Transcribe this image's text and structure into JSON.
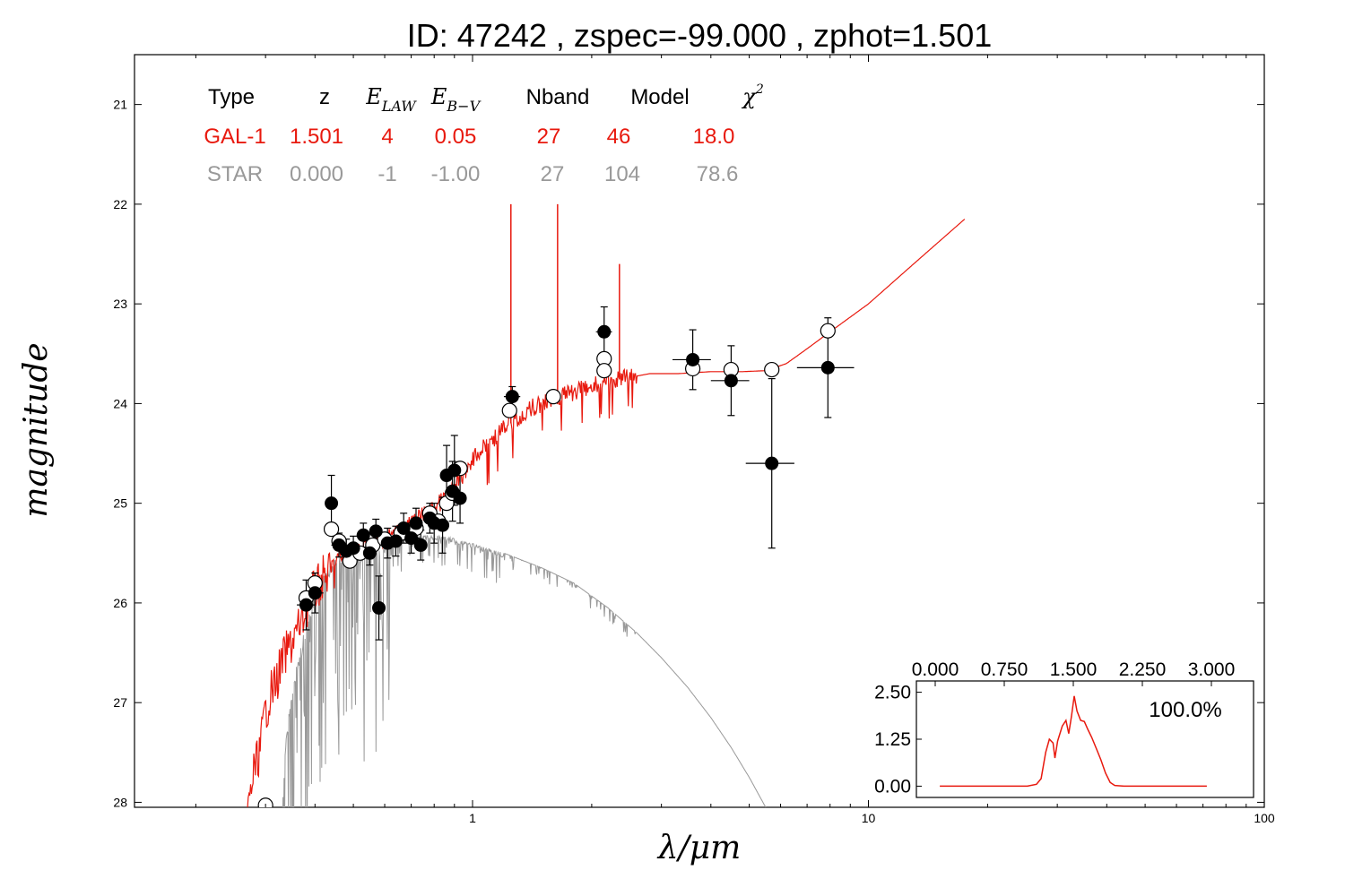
{
  "colors": {
    "galaxy": "#e8190e",
    "star": "#999999",
    "axes": "#000000",
    "open_point": "#ffffff"
  },
  "chart_data": [
    {
      "type": "scatter",
      "title": "ID:  47242 , zspec=-99.000 , zphot=1.501",
      "xlabel": "λ/μm",
      "ylabel": "magnitude",
      "xscale": "log",
      "xlim": [
        0.14,
        100
      ],
      "ylim": [
        28.05,
        20.5
      ],
      "y_inverted": true,
      "grid": false,
      "xticks": [
        {
          "value": 1,
          "label": "1"
        },
        {
          "value": 10,
          "label": "10"
        },
        {
          "value": 100,
          "label": "100"
        }
      ],
      "yticks": [
        {
          "value": 21,
          "label": "21"
        },
        {
          "value": 22,
          "label": "22"
        },
        {
          "value": 23,
          "label": "23"
        },
        {
          "value": 24,
          "label": "24"
        },
        {
          "value": 25,
          "label": "25"
        },
        {
          "value": 26,
          "label": "26"
        },
        {
          "value": 27,
          "label": "27"
        },
        {
          "value": 28,
          "label": "28"
        }
      ],
      "fit_table": {
        "headers": [
          {
            "text": "Type",
            "math": false
          },
          {
            "text": "z",
            "math": false
          },
          {
            "text": "E",
            "sub": "LAW",
            "math": true
          },
          {
            "text": "E",
            "sub": "B−V",
            "math": true
          },
          {
            "text": "Nband",
            "math": false
          },
          {
            "text": "Model",
            "math": false
          },
          {
            "text": "χ",
            "sup": "2",
            "math": true
          }
        ],
        "rows": [
          {
            "series": "GAL-1",
            "cells": [
              "GAL-1",
              "1.501",
              "4",
              "0.05",
              "27",
              "46",
              "18.0"
            ]
          },
          {
            "series": "STAR",
            "cells": [
              "STAR",
              "0.000",
              "-1",
              "-1.00",
              "27",
              "104",
              "78.6"
            ]
          }
        ]
      },
      "series": [
        {
          "name": "GAL-1",
          "kind": "line",
          "color": "#e8190e",
          "points": [
            [
              0.27,
              28.05
            ],
            [
              0.28,
              27.6
            ],
            [
              0.29,
              27.4
            ],
            [
              0.3,
              27.0
            ],
            [
              0.31,
              26.8
            ],
            [
              0.32,
              26.7
            ],
            [
              0.33,
              26.5
            ],
            [
              0.35,
              26.3
            ],
            [
              0.37,
              26.1
            ],
            [
              0.39,
              25.85
            ],
            [
              0.42,
              25.65
            ],
            [
              0.46,
              25.55
            ],
            [
              0.5,
              25.5
            ],
            [
              0.55,
              25.42
            ],
            [
              0.6,
              25.35
            ],
            [
              0.65,
              25.28
            ],
            [
              0.7,
              25.2
            ],
            [
              0.75,
              25.12
            ],
            [
              0.8,
              25.05
            ],
            [
              0.85,
              24.95
            ],
            [
              0.9,
              24.85
            ],
            [
              0.95,
              24.7
            ],
            [
              1.0,
              24.55
            ],
            [
              1.1,
              24.4
            ],
            [
              1.2,
              24.25
            ],
            [
              1.3,
              24.15
            ],
            [
              1.4,
              24.05
            ],
            [
              1.55,
              23.97
            ],
            [
              1.7,
              23.92
            ],
            [
              1.9,
              23.85
            ],
            [
              2.1,
              23.8
            ],
            [
              2.4,
              23.75
            ],
            [
              2.8,
              23.7
            ],
            [
              3.3,
              23.7
            ],
            [
              4.0,
              23.68
            ],
            [
              4.8,
              23.68
            ],
            [
              5.5,
              23.67
            ],
            [
              6.2,
              23.6
            ],
            [
              7.0,
              23.45
            ],
            [
              8.0,
              23.28
            ],
            [
              10.0,
              23.0
            ],
            [
              13.0,
              22.6
            ],
            [
              17.5,
              22.15
            ]
          ],
          "emission_lines": [
            {
              "wavelength": 1.25,
              "peak_magnitude": 22.0
            },
            {
              "wavelength": 1.64,
              "peak_magnitude": 22.0
            },
            {
              "wavelength": 2.35,
              "peak_magnitude": 22.6
            }
          ]
        },
        {
          "name": "STAR",
          "kind": "line",
          "color": "#999999",
          "points": [
            [
              0.33,
              28.05
            ],
            [
              0.34,
              27.2
            ],
            [
              0.36,
              26.6
            ],
            [
              0.38,
              26.2
            ],
            [
              0.4,
              25.85
            ],
            [
              0.43,
              25.6
            ],
            [
              0.47,
              25.5
            ],
            [
              0.52,
              25.45
            ],
            [
              0.6,
              25.38
            ],
            [
              0.7,
              25.32
            ],
            [
              0.8,
              25.32
            ],
            [
              0.9,
              25.35
            ],
            [
              1.0,
              25.4
            ],
            [
              1.2,
              25.5
            ],
            [
              1.5,
              25.65
            ],
            [
              1.8,
              25.8
            ],
            [
              2.2,
              26.05
            ],
            [
              2.6,
              26.3
            ],
            [
              3.0,
              26.55
            ],
            [
              3.5,
              26.85
            ],
            [
              4.0,
              27.15
            ],
            [
              4.5,
              27.45
            ],
            [
              5.0,
              27.75
            ],
            [
              5.5,
              28.05
            ]
          ]
        },
        {
          "name": "observed",
          "kind": "errorbar",
          "marker": "filled",
          "points": [
            {
              "x": 0.38,
              "y": 26.02,
              "yerr": 0.25,
              "xerr": 0.02
            },
            {
              "x": 0.4,
              "y": 25.9,
              "yerr": 0.2,
              "xerr": 0.02
            },
            {
              "x": 0.44,
              "y": 25.0,
              "yerr": 0.28,
              "xerr": 0.01
            },
            {
              "x": 0.46,
              "y": 25.42,
              "yerr": 0.12,
              "xerr": 0.02
            },
            {
              "x": 0.48,
              "y": 25.48,
              "yerr": 0.12,
              "xerr": 0.02
            },
            {
              "x": 0.5,
              "y": 25.45,
              "yerr": 0.12,
              "xerr": 0.02
            },
            {
              "x": 0.53,
              "y": 25.32,
              "yerr": 0.12,
              "xerr": 0.02
            },
            {
              "x": 0.55,
              "y": 25.5,
              "yerr": 0.12,
              "xerr": 0.02
            },
            {
              "x": 0.57,
              "y": 25.28,
              "yerr": 0.12,
              "xerr": 0.02
            },
            {
              "x": 0.58,
              "y": 26.05,
              "yerr": 0.32,
              "xerr": 0.01
            },
            {
              "x": 0.61,
              "y": 25.4,
              "yerr": 0.15,
              "xerr": 0.02
            },
            {
              "x": 0.64,
              "y": 25.38,
              "yerr": 0.15,
              "xerr": 0.02
            },
            {
              "x": 0.67,
              "y": 25.25,
              "yerr": 0.15,
              "xerr": 0.02
            },
            {
              "x": 0.7,
              "y": 25.35,
              "yerr": 0.15,
              "xerr": 0.02
            },
            {
              "x": 0.72,
              "y": 25.2,
              "yerr": 0.15,
              "xerr": 0.02
            },
            {
              "x": 0.74,
              "y": 25.42,
              "yerr": 0.15,
              "xerr": 0.02
            },
            {
              "x": 0.78,
              "y": 25.15,
              "yerr": 0.15,
              "xerr": 0.02
            },
            {
              "x": 0.8,
              "y": 25.2,
              "yerr": 0.2,
              "xerr": 0.02
            },
            {
              "x": 0.84,
              "y": 25.22,
              "yerr": 0.28,
              "xerr": 0.02
            },
            {
              "x": 0.86,
              "y": 24.72,
              "yerr": 0.3,
              "xerr": 0.02
            },
            {
              "x": 0.89,
              "y": 24.88,
              "yerr": 0.3,
              "xerr": 0.02
            },
            {
              "x": 0.9,
              "y": 24.67,
              "yerr": 0.35,
              "xerr": 0.02
            },
            {
              "x": 0.93,
              "y": 24.95,
              "yerr": 0.25,
              "xerr": 0.02
            },
            {
              "x": 1.26,
              "y": 23.93,
              "yerr": 0.1,
              "xerr": 0.06
            },
            {
              "x": 2.15,
              "y": 23.28,
              "yerr": 0.25,
              "xerr": 0.1
            },
            {
              "x": 3.6,
              "y": 23.56,
              "yerr": 0.3,
              "xerr": 0.4
            },
            {
              "x": 4.5,
              "y": 23.77,
              "yerr": 0.35,
              "xerr": 0.5
            },
            {
              "x": 5.7,
              "y": 24.6,
              "yerr": 0.85,
              "xerr": 0.8
            },
            {
              "x": 7.9,
              "y": 23.64,
              "yerr": 0.5,
              "xerr": 1.3
            }
          ]
        },
        {
          "name": "model-predicted",
          "kind": "points",
          "marker": "open",
          "points": [
            {
              "x": 0.3,
              "y": 28.03
            },
            {
              "x": 0.38,
              "y": 25.95
            },
            {
              "x": 0.4,
              "y": 25.8
            },
            {
              "x": 0.44,
              "y": 25.26
            },
            {
              "x": 0.46,
              "y": 25.38
            },
            {
              "x": 0.49,
              "y": 25.58
            },
            {
              "x": 0.52,
              "y": 25.5
            },
            {
              "x": 0.56,
              "y": 25.42
            },
            {
              "x": 0.6,
              "y": 25.36
            },
            {
              "x": 0.66,
              "y": 25.3
            },
            {
              "x": 0.72,
              "y": 25.25
            },
            {
              "x": 0.78,
              "y": 25.1
            },
            {
              "x": 0.82,
              "y": 25.18
            },
            {
              "x": 0.86,
              "y": 25.0
            },
            {
              "x": 0.89,
              "y": 24.9
            },
            {
              "x": 0.93,
              "y": 24.65
            },
            {
              "x": 1.24,
              "y": 24.07
            },
            {
              "x": 1.6,
              "y": 23.93
            },
            {
              "x": 2.15,
              "y": 23.55
            },
            {
              "x": 2.15,
              "y": 23.67
            },
            {
              "x": 3.6,
              "y": 23.65
            },
            {
              "x": 4.5,
              "y": 23.66
            },
            {
              "x": 5.7,
              "y": 23.66
            },
            {
              "x": 7.9,
              "y": 23.27
            }
          ]
        }
      ]
    },
    {
      "type": "line",
      "name": "redshift probability inset",
      "xlim": [
        0,
        3.0
      ],
      "ylim": [
        -0.3,
        2.8
      ],
      "xticks": [
        {
          "value": 0.0,
          "label": "0.000"
        },
        {
          "value": 0.75,
          "label": "0.750"
        },
        {
          "value": 1.5,
          "label": "1.500"
        },
        {
          "value": 2.25,
          "label": "2.250"
        },
        {
          "value": 3.0,
          "label": "3.000"
        }
      ],
      "yticks": [
        {
          "value": 0.0,
          "label": "0.00"
        },
        {
          "value": 1.25,
          "label": "1.25"
        },
        {
          "value": 2.5,
          "label": "2.50"
        }
      ],
      "annotation": "100.0%",
      "series": [
        {
          "color": "#e8190e",
          "points": [
            [
              0.05,
              0
            ],
            [
              0.8,
              0
            ],
            [
              1.0,
              0
            ],
            [
              1.1,
              0.05
            ],
            [
              1.15,
              0.2
            ],
            [
              1.2,
              0.9
            ],
            [
              1.24,
              1.25
            ],
            [
              1.28,
              1.15
            ],
            [
              1.3,
              0.75
            ],
            [
              1.33,
              1.2
            ],
            [
              1.38,
              1.6
            ],
            [
              1.42,
              1.75
            ],
            [
              1.45,
              1.4
            ],
            [
              1.48,
              1.85
            ],
            [
              1.51,
              2.4
            ],
            [
              1.54,
              2.0
            ],
            [
              1.58,
              1.75
            ],
            [
              1.62,
              1.72
            ],
            [
              1.66,
              1.5
            ],
            [
              1.7,
              1.3
            ],
            [
              1.75,
              1.0
            ],
            [
              1.8,
              0.7
            ],
            [
              1.85,
              0.35
            ],
            [
              1.9,
              0.1
            ],
            [
              1.95,
              0.02
            ],
            [
              2.05,
              0
            ],
            [
              2.95,
              0
            ]
          ]
        }
      ]
    }
  ]
}
